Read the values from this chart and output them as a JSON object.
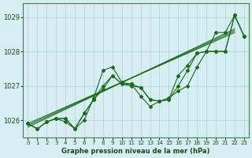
{
  "title": "Graphe pression niveau de la mer (hPa)",
  "background_color": "#d6eef2",
  "line_color": "#1a6b1a",
  "grid_color": "#b0d4dc",
  "ylim": [
    1025.5,
    1029.4
  ],
  "xlim": [
    -0.5,
    23.5
  ],
  "yticks": [
    1026,
    1027,
    1028,
    1029
  ],
  "xticks": [
    0,
    1,
    2,
    3,
    4,
    5,
    6,
    7,
    8,
    9,
    10,
    11,
    12,
    13,
    14,
    15,
    16,
    17,
    18,
    19,
    20,
    21,
    22,
    23
  ],
  "series": [
    [
      1025.9,
      1025.75,
      1025.95,
      1026.05,
      1026.05,
      1025.75,
      1026.0,
      1026.65,
      1027.45,
      1027.55,
      1027.1,
      1027.05,
      1026.95,
      1026.6,
      1026.55,
      1026.65,
      1026.85,
      1027.0,
      1027.55,
      1028.0,
      1028.55,
      1028.55,
      1029.05,
      1028.45
    ],
    [
      1025.9,
      1025.75,
      1025.95,
      1026.05,
      1026.05,
      1025.75,
      1026.2,
      1026.6,
      1026.9,
      1027.3,
      1027.05,
      1027.05,
      1026.7,
      1026.4,
      1026.55,
      1026.6,
      1027.3,
      1027.6,
      1027.95,
      1028.0,
      1028.0,
      1028.0,
      1029.05,
      1028.45
    ],
    [
      1025.9,
      1025.75,
      1025.95,
      1026.05,
      1025.95,
      1025.75,
      1026.2,
      1026.6,
      1027.0,
      1027.3,
      1027.05,
      1027.0,
      1026.95,
      1026.6,
      1026.55,
      1026.6,
      1027.0,
      1027.45,
      1027.95,
      1028.0,
      1028.0,
      1028.0,
      1029.05,
      1028.45
    ]
  ],
  "trend_lines": [
    [
      1025.9,
      1028.55
    ],
    [
      1025.85,
      1028.6
    ],
    [
      1025.8,
      1028.65
    ]
  ]
}
